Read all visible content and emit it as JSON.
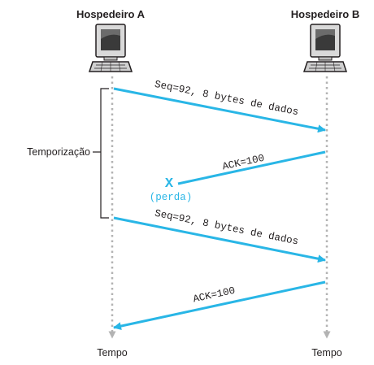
{
  "hosts": {
    "a": {
      "label": "Hospedeiro A",
      "time_label": "Tempo"
    },
    "b": {
      "label": "Hospedeiro B",
      "time_label": "Tempo"
    }
  },
  "timeout": {
    "label": "Temporização"
  },
  "messages": [
    {
      "id": "seq1",
      "label": "Seq=92, 8 bytes de dados",
      "from": "A",
      "to": "B",
      "lost": false
    },
    {
      "id": "ack1",
      "label": "ACK=100",
      "from": "B",
      "to": "A",
      "lost": true
    },
    {
      "id": "seq2",
      "label": "Seq=92, 8 bytes de dados",
      "from": "A",
      "to": "B",
      "lost": false
    },
    {
      "id": "ack2",
      "label": "ACK=100",
      "from": "B",
      "to": "A",
      "lost": false
    }
  ],
  "loss": {
    "marker": "X",
    "label": "(perda)"
  },
  "colors": {
    "arrow": "#29b6e6",
    "timeline": "#b3b3b3",
    "text": "#231f20",
    "loss": "#29b6e6"
  },
  "icons": {
    "host": "desktop-computer-icon"
  }
}
